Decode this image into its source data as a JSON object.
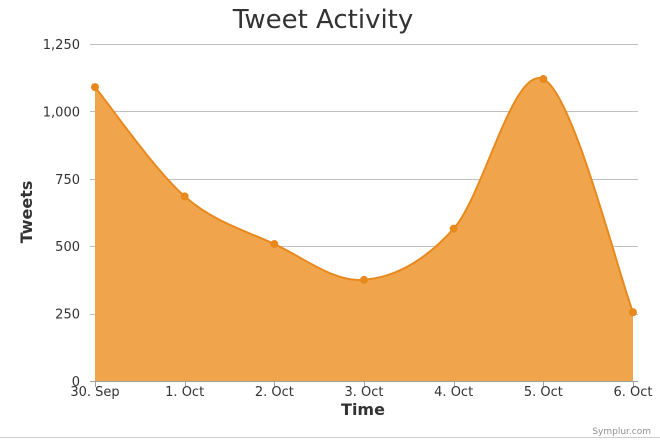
{
  "chart_data": {
    "type": "area",
    "title": "Tweet Activity",
    "xlabel": "Time",
    "ylabel": "Tweets",
    "categories": [
      "30. Sep",
      "1. Oct",
      "2. Oct",
      "3. Oct",
      "4. Oct",
      "5. Oct",
      "6. Oct"
    ],
    "series": [
      {
        "values": [
          1090,
          685,
          508,
          375,
          565,
          1120,
          255
        ]
      }
    ],
    "ylim": [
      0,
      1250
    ],
    "yticks": [
      0,
      250,
      500,
      750,
      1000,
      1250
    ],
    "ytick_labels": [
      "0",
      "250",
      "500",
      "750",
      "1,000",
      "1,250"
    ],
    "grid": true,
    "legend": "none",
    "colors": {
      "fill": "#f0a54d",
      "line": "#e8891e",
      "marker": "#e8891e"
    }
  },
  "credit": "Symplur.com"
}
